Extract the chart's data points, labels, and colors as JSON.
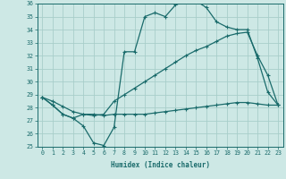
{
  "xlabel": "Humidex (Indice chaleur)",
  "ylabel": "",
  "bg_color": "#cde8e5",
  "grid_color": "#a8ceca",
  "line_color": "#1a6b6b",
  "xlim": [
    -0.5,
    23.5
  ],
  "ylim": [
    25,
    36
  ],
  "xticks": [
    0,
    1,
    2,
    3,
    4,
    5,
    6,
    7,
    8,
    9,
    10,
    11,
    12,
    13,
    14,
    15,
    16,
    17,
    18,
    19,
    20,
    21,
    22,
    23
  ],
  "yticks": [
    25,
    26,
    27,
    28,
    29,
    30,
    31,
    32,
    33,
    34,
    35,
    36
  ],
  "curve1_x": [
    0,
    1,
    2,
    3,
    4,
    5,
    6,
    7,
    8,
    9,
    10,
    11,
    12,
    13,
    14,
    15,
    16,
    17,
    18,
    19,
    20,
    21,
    22,
    23
  ],
  "curve1_y": [
    28.8,
    28.2,
    27.5,
    27.2,
    26.6,
    25.3,
    25.1,
    26.5,
    32.3,
    32.3,
    35.0,
    35.3,
    35.0,
    35.9,
    36.15,
    36.2,
    35.7,
    34.6,
    34.2,
    34.0,
    34.0,
    31.8,
    29.2,
    28.2
  ],
  "curve2_x": [
    0,
    1,
    2,
    3,
    4,
    5,
    6,
    7,
    8,
    9,
    10,
    11,
    12,
    13,
    14,
    15,
    16,
    17,
    18,
    19,
    20,
    21,
    22,
    23
  ],
  "curve2_y": [
    28.8,
    28.5,
    28.1,
    27.7,
    27.5,
    27.4,
    27.5,
    28.5,
    29.0,
    29.5,
    30.0,
    30.5,
    31.0,
    31.5,
    32.0,
    32.4,
    32.7,
    33.1,
    33.5,
    33.7,
    33.8,
    32.0,
    30.5,
    28.2
  ],
  "curve3_x": [
    0,
    1,
    2,
    3,
    4,
    5,
    6,
    7,
    8,
    9,
    10,
    11,
    12,
    13,
    14,
    15,
    16,
    17,
    18,
    19,
    20,
    21,
    22,
    23
  ],
  "curve3_y": [
    28.8,
    28.2,
    27.5,
    27.2,
    27.5,
    27.5,
    27.4,
    27.5,
    27.5,
    27.5,
    27.5,
    27.6,
    27.7,
    27.8,
    27.9,
    28.0,
    28.1,
    28.2,
    28.3,
    28.4,
    28.4,
    28.3,
    28.2,
    28.2
  ]
}
